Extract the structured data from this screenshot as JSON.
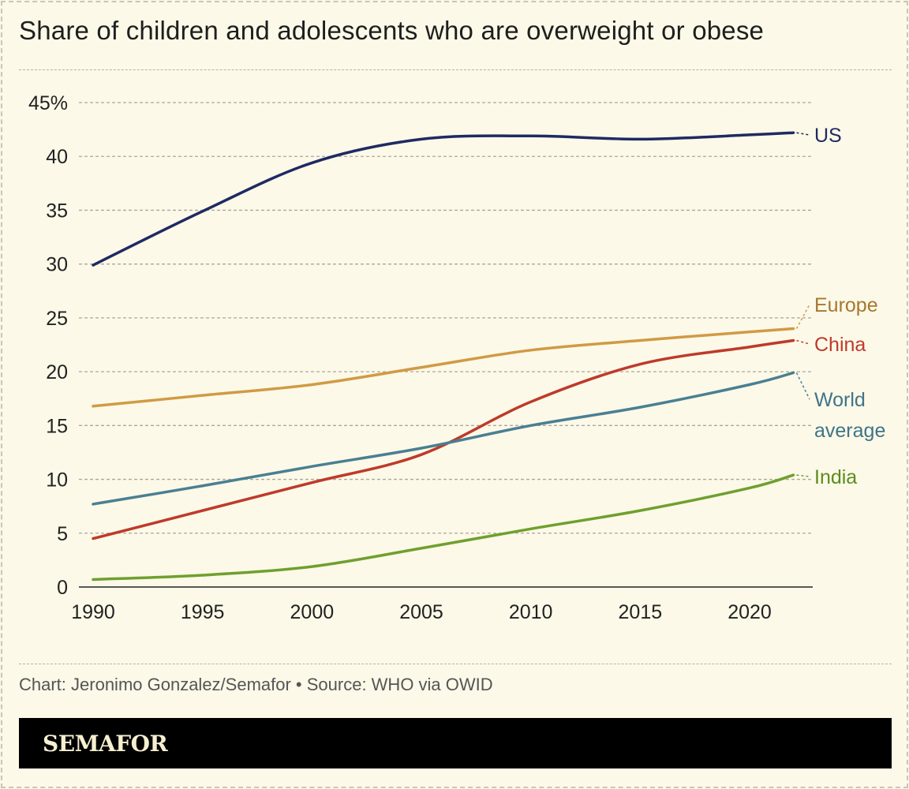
{
  "title": "Share of children and adolescents who are overweight or obese",
  "credit": "Chart: Jeronimo Gonzalez/Semafor • Source: WHO via OWID",
  "logo": "SEMAFOR",
  "chart_data": {
    "type": "line",
    "title": "Share of children and adolescents who are overweight or obese",
    "xlabel": "",
    "ylabel": "",
    "xlim": [
      1990,
      2022
    ],
    "ylim": [
      0,
      45
    ],
    "grid": true,
    "legend": "direct labels at line ends (right)",
    "x_ticks": [
      "1990",
      "1995",
      "2000",
      "2005",
      "2010",
      "2015",
      "2020"
    ],
    "y_ticks": [
      "0",
      "5",
      "10",
      "15",
      "20",
      "25",
      "30",
      "35",
      "40",
      "45%"
    ],
    "x": [
      1990,
      1995,
      2000,
      2005,
      2010,
      2015,
      2020,
      2022
    ],
    "series": [
      {
        "name": "US",
        "color": "#1f2a63",
        "values": [
          29.9,
          34.9,
          39.4,
          41.6,
          41.9,
          41.6,
          42.0,
          42.2
        ]
      },
      {
        "name": "Europe",
        "color": "#d19a45",
        "values": [
          16.8,
          17.8,
          18.8,
          20.4,
          22.0,
          22.9,
          23.7,
          24.0
        ]
      },
      {
        "name": "China",
        "color": "#be3a2b",
        "values": [
          4.5,
          7.1,
          9.7,
          12.3,
          17.2,
          20.7,
          22.3,
          22.9
        ]
      },
      {
        "name": "World average",
        "color": "#4a7f92",
        "values": [
          7.7,
          9.4,
          11.2,
          12.9,
          15.0,
          16.7,
          18.8,
          19.9
        ]
      },
      {
        "name": "India",
        "color": "#6fa02e",
        "values": [
          0.7,
          1.1,
          1.9,
          3.6,
          5.4,
          7.1,
          9.2,
          10.4
        ]
      }
    ],
    "labels": {
      "US": "US",
      "Europe": "Europe",
      "China": "China",
      "World_line1": "World",
      "World_line2": "average",
      "India": "India"
    },
    "label_colors": {
      "US": "#1f2a63",
      "Europe": "#a6782e",
      "China": "#be3a2b",
      "World": "#3f7489",
      "India": "#5b8c1c"
    }
  }
}
